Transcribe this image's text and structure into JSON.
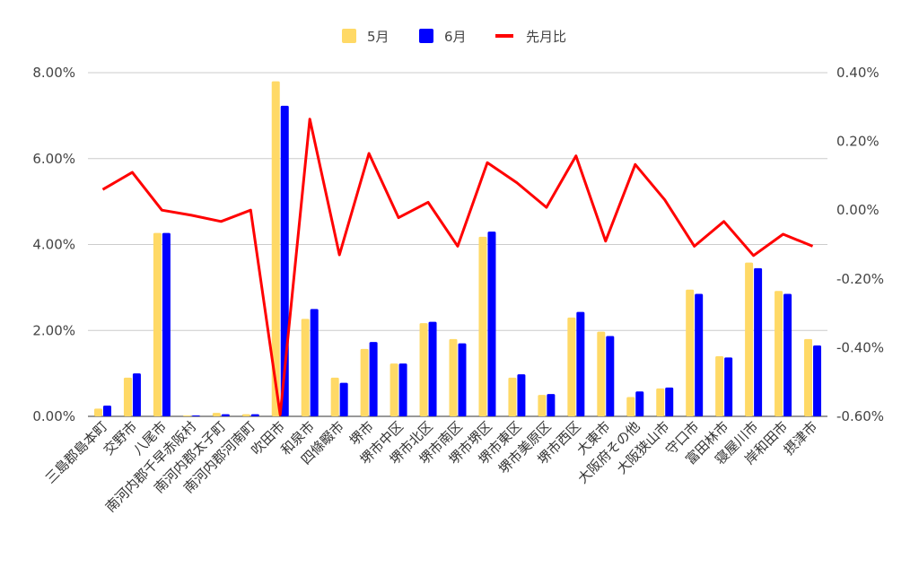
{
  "chart_data": {
    "type": "bar",
    "categories": [
      "三島郡島本町",
      "交野市",
      "八尾市",
      "南河内郡千早赤阪村",
      "南河内郡太子町",
      "南河内郡河南町",
      "吹田市",
      "和泉市",
      "四條畷市",
      "堺市",
      "堺市中区",
      "堺市北区",
      "堺市南区",
      "堺市堺区",
      "堺市東区",
      "堺市美原区",
      "堺市西区",
      "大東市",
      "大阪府その他",
      "大阪狭山市",
      "守口市",
      "富田林市",
      "寝屋川市",
      "岸和田市",
      "摂津市"
    ],
    "series": [
      {
        "name": "5月",
        "type": "bar",
        "axis": "left",
        "color": "#FFD966",
        "values": [
          0.18,
          0.9,
          4.27,
          0.02,
          0.08,
          0.05,
          7.8,
          2.27,
          0.9,
          1.57,
          1.23,
          2.17,
          1.8,
          4.18,
          0.9,
          0.5,
          2.3,
          1.97,
          0.45,
          0.65,
          2.95,
          1.4,
          3.58,
          2.92,
          1.8
        ]
      },
      {
        "name": "6月",
        "type": "bar",
        "axis": "left",
        "color": "#0000FF",
        "values": [
          0.25,
          1.0,
          4.27,
          0.02,
          0.05,
          0.05,
          7.23,
          2.5,
          0.78,
          1.73,
          1.23,
          2.2,
          1.7,
          4.3,
          0.98,
          0.52,
          2.43,
          1.87,
          0.58,
          0.67,
          2.85,
          1.37,
          3.45,
          2.85,
          1.65
        ]
      },
      {
        "name": "先月比",
        "type": "line",
        "axis": "right",
        "color": "#FF0000",
        "values": [
          0.06,
          0.11,
          0.0,
          -0.015,
          -0.033,
          0.0,
          -0.595,
          0.265,
          -0.13,
          0.165,
          -0.022,
          0.023,
          -0.105,
          0.138,
          0.08,
          0.008,
          0.158,
          -0.09,
          0.133,
          0.03,
          -0.105,
          -0.033,
          -0.132,
          -0.07,
          -0.105
        ]
      }
    ],
    "y_left": {
      "min": 0,
      "max": 8,
      "ticks": [
        0,
        2,
        4,
        6,
        8
      ],
      "format": "percent2"
    },
    "y_right": {
      "min": -0.6,
      "max": 0.4,
      "ticks": [
        -0.6,
        -0.4,
        -0.2,
        0.0,
        0.2,
        0.4
      ],
      "format": "percent2"
    },
    "tick_labels_left": [
      "0.00%",
      "2.00%",
      "4.00%",
      "6.00%",
      "8.00%"
    ],
    "tick_labels_right": [
      "-0.60%",
      "-0.40%",
      "-0.20%",
      "0.00%",
      "0.20%",
      "0.40%"
    ],
    "legend": {
      "position": "top",
      "items": [
        "5月",
        "6月",
        "先月比"
      ]
    },
    "grid": true,
    "title": "",
    "xlabel": "",
    "ylabel": ""
  }
}
